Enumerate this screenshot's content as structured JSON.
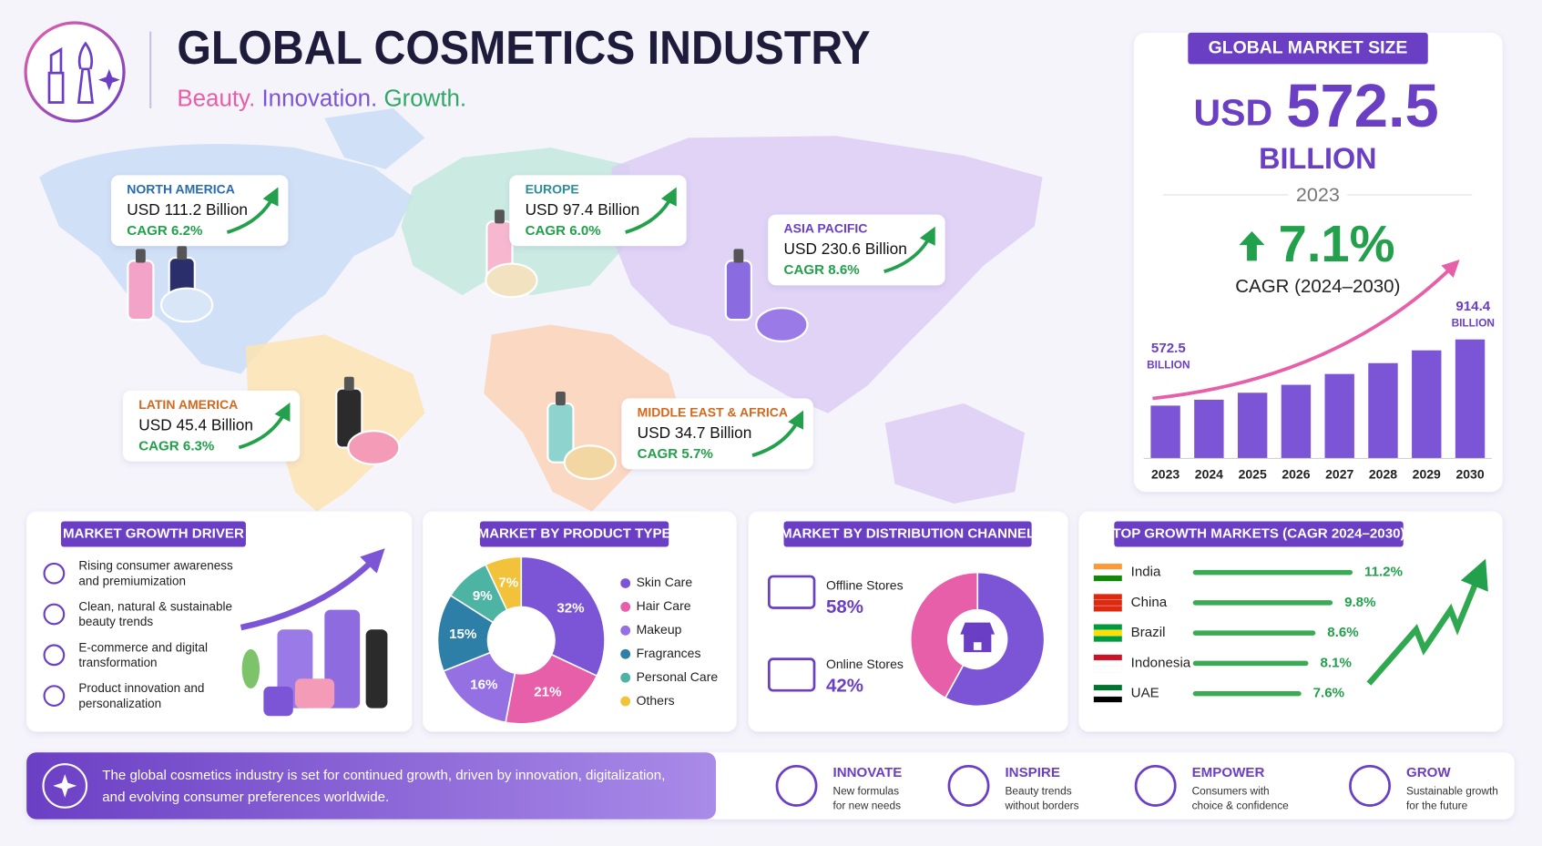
{
  "header": {
    "title": "GLOBAL COSMETICS INDUSTRY",
    "tagline": [
      "Beauty.",
      "Innovation.",
      "Growth."
    ]
  },
  "regions": [
    {
      "name": "NORTH AMERICA",
      "market": "USD 111.2 Billion",
      "cagr": "CAGR 6.2%"
    },
    {
      "name": "EUROPE",
      "market": "USD 97.4 Billion",
      "cagr": "CAGR 6.0%"
    },
    {
      "name": "ASIA PACIFIC",
      "market": "USD 230.6 Billion",
      "cagr": "CAGR 8.6%"
    },
    {
      "name": "LATIN AMERICA",
      "market": "USD 45.4 Billion",
      "cagr": "CAGR 6.3%"
    },
    {
      "name": "MIDDLE EAST & AFRICA",
      "market": "USD 34.7 Billion",
      "cagr": "CAGR 5.7%"
    }
  ],
  "market_size": {
    "title": "GLOBAL MARKET SIZE",
    "currency": "USD",
    "value": "572.5",
    "unit": "BILLION",
    "year": "2023",
    "growth": "7.1%",
    "growth_label": "CAGR (2024–2030)"
  },
  "chart_data": [
    {
      "type": "bar",
      "categories": [
        "2023",
        "2024",
        "2025",
        "2026",
        "2027",
        "2028",
        "2029",
        "2030"
      ],
      "values": [
        572.5,
        603,
        639,
        680,
        736,
        792,
        858,
        914.4
      ],
      "value_labels": [
        "572.5",
        null,
        null,
        null,
        null,
        null,
        null,
        "914.4"
      ],
      "unit_label": "BILLION",
      "color": "#7b55d6",
      "ylim": [
        300,
        950
      ]
    },
    {
      "type": "pie",
      "title": "MARKET BY PRODUCT TYPE",
      "categories": [
        "Skin Care",
        "Hair Care",
        "Makeup",
        "Fragrances",
        "Personal Care",
        "Others"
      ],
      "values": [
        32,
        21,
        16,
        15,
        9,
        7
      ],
      "value_labels": [
        "32%",
        "21%",
        "16%",
        "15%",
        "9%",
        "7%"
      ],
      "colors": [
        "#7b55d6",
        "#e65fa8",
        "#9470e3",
        "#2d7fa8",
        "#4db3a2",
        "#f2c23a"
      ]
    },
    {
      "type": "pie",
      "title": "MARKET BY DISTRIBUTION CHANNEL",
      "categories": [
        "Offline Stores",
        "Online Stores"
      ],
      "values": [
        58,
        42
      ],
      "value_labels": [
        "58%",
        "42%"
      ],
      "colors": [
        "#7b55d6",
        "#e65fa8"
      ]
    },
    {
      "type": "bar",
      "orientation": "horizontal",
      "title": "TOP GROWTH MARKETS (CAGR 2024–2030)",
      "categories": [
        "India",
        "China",
        "Brazil",
        "Indonesia",
        "UAE"
      ],
      "values": [
        11.2,
        9.8,
        8.6,
        8.1,
        7.6
      ],
      "value_labels": [
        "11.2%",
        "9.8%",
        "8.6%",
        "8.1%",
        "7.6%"
      ],
      "color": "#3aaa55",
      "xlim": [
        0,
        12
      ]
    }
  ],
  "drivers": {
    "title": "MARKET GROWTH DRIVER",
    "items": [
      [
        "Rising consumer awareness",
        "and premiumization"
      ],
      [
        "Clean, natural & sustainable",
        "beauty trends"
      ],
      [
        "E-commerce and digital",
        "transformation"
      ],
      [
        "Product innovation and",
        "personalization"
      ]
    ]
  },
  "footer": {
    "message": [
      "The global cosmetics industry is set for continued growth, driven by innovation, digitalization,",
      "and evolving consumer preferences worldwide."
    ],
    "pillars": [
      {
        "title": "INNOVATE",
        "text": [
          "New formulas",
          "for new needs"
        ]
      },
      {
        "title": "INSPIRE",
        "text": [
          "Beauty trends",
          "without borders"
        ]
      },
      {
        "title": "EMPOWER",
        "text": [
          "Consumers with",
          "choice & confidence"
        ]
      },
      {
        "title": "GROW",
        "text": [
          "Sustainable growth",
          "for the future"
        ]
      }
    ]
  }
}
